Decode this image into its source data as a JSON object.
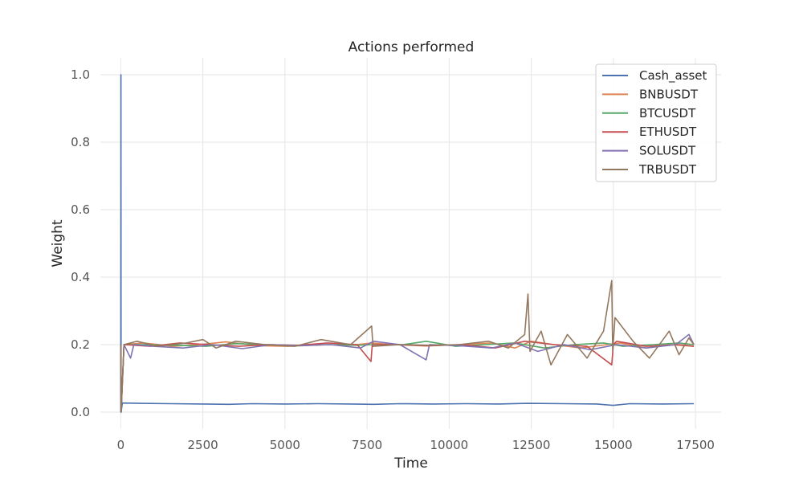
{
  "chart_data": {
    "type": "line",
    "title": "Actions performed",
    "xlabel": "Time",
    "ylabel": "Weight",
    "xlim": [
      -620,
      18280
    ],
    "ylim": [
      -0.05,
      1.05
    ],
    "xticks": [
      0,
      2500,
      5000,
      7500,
      10000,
      12500,
      15000,
      17500
    ],
    "xtick_labels": [
      "0",
      "2500",
      "5000",
      "7500",
      "10000",
      "12500",
      "15000",
      "17500"
    ],
    "yticks": [
      0.0,
      0.2,
      0.4,
      0.6,
      0.8,
      1.0
    ],
    "ytick_labels": [
      "0.0",
      "0.2",
      "0.4",
      "0.6",
      "0.8",
      "1.0"
    ],
    "grid": true,
    "legend_position": "top-right",
    "series": [
      {
        "name": "Cash_asset",
        "color": "#4c72b0",
        "x": [
          0,
          5,
          10,
          50,
          600,
          1500,
          2500,
          3300,
          4000,
          5000,
          6000,
          7000,
          7700,
          8500,
          9500,
          10500,
          11500,
          12400,
          13500,
          14500,
          15000,
          15500,
          16500,
          17450
        ],
        "y": [
          0.0,
          1.0,
          0.0,
          0.027,
          0.026,
          0.025,
          0.024,
          0.023,
          0.025,
          0.024,
          0.025,
          0.024,
          0.023,
          0.025,
          0.024,
          0.025,
          0.024,
          0.026,
          0.025,
          0.024,
          0.02,
          0.025,
          0.024,
          0.025
        ]
      },
      {
        "name": "BNBUSDT",
        "color": "#dd8452",
        "x": [
          0,
          10,
          100,
          700,
          1600,
          2400,
          3200,
          4200,
          5100,
          6100,
          7000,
          7650,
          8300,
          9300,
          10300,
          11300,
          12000,
          12500,
          13200,
          14000,
          14800,
          15200,
          16000,
          16700,
          17450
        ],
        "y": [
          0.2,
          0.0,
          0.2,
          0.205,
          0.195,
          0.2,
          0.208,
          0.197,
          0.195,
          0.2,
          0.198,
          0.205,
          0.2,
          0.196,
          0.2,
          0.205,
          0.19,
          0.21,
          0.2,
          0.19,
          0.2,
          0.205,
          0.19,
          0.2,
          0.195
        ]
      },
      {
        "name": "BTCUSDT",
        "color": "#55a868",
        "x": [
          0,
          10,
          100,
          800,
          1700,
          2600,
          3500,
          4500,
          5400,
          6300,
          7200,
          7700,
          8600,
          9300,
          10200,
          11100,
          12000,
          12900,
          13800,
          14700,
          15300,
          16200,
          17000,
          17450
        ],
        "y": [
          0.2,
          0.0,
          0.2,
          0.2,
          0.198,
          0.195,
          0.203,
          0.2,
          0.197,
          0.2,
          0.198,
          0.2,
          0.2,
          0.21,
          0.195,
          0.2,
          0.205,
          0.19,
          0.2,
          0.205,
          0.195,
          0.2,
          0.205,
          0.2
        ]
      },
      {
        "name": "ETHUSDT",
        "color": "#c44e52",
        "x": [
          0,
          10,
          100,
          900,
          1800,
          2700,
          3600,
          4500,
          5400,
          6300,
          7200,
          7620,
          7660,
          8400,
          9400,
          10400,
          11400,
          12300,
          13200,
          14200,
          14950,
          15000,
          15100,
          16000,
          17000,
          17450
        ],
        "y": [
          0.2,
          0.0,
          0.2,
          0.195,
          0.205,
          0.2,
          0.195,
          0.2,
          0.198,
          0.205,
          0.2,
          0.15,
          0.2,
          0.2,
          0.197,
          0.2,
          0.19,
          0.21,
          0.2,
          0.195,
          0.14,
          0.2,
          0.21,
          0.195,
          0.2,
          0.195
        ]
      },
      {
        "name": "SOLUSDT",
        "color": "#8172b3",
        "x": [
          0,
          10,
          100,
          300,
          400,
          1000,
          1900,
          2800,
          3700,
          4600,
          5500,
          6400,
          7300,
          7700,
          8500,
          9300,
          9400,
          10300,
          11300,
          12000,
          12700,
          13500,
          14300,
          15100,
          16000,
          16900,
          17300,
          17450
        ],
        "y": [
          0.2,
          0.0,
          0.2,
          0.16,
          0.2,
          0.195,
          0.19,
          0.2,
          0.188,
          0.2,
          0.197,
          0.2,
          0.19,
          0.21,
          0.2,
          0.155,
          0.2,
          0.197,
          0.19,
          0.205,
          0.18,
          0.2,
          0.185,
          0.2,
          0.19,
          0.2,
          0.23,
          0.2
        ]
      },
      {
        "name": "TRBUSDT",
        "color": "#937860",
        "x": [
          0,
          10,
          100,
          500,
          1100,
          2000,
          2500,
          2900,
          3500,
          4400,
          5300,
          6100,
          7000,
          7640,
          7680,
          8500,
          9400,
          10300,
          11200,
          11800,
          12300,
          12400,
          12460,
          12800,
          13100,
          13600,
          14200,
          14700,
          14950,
          14980,
          15050,
          15600,
          16100,
          16700,
          17000,
          17300,
          17450
        ],
        "y": [
          0.2,
          0.0,
          0.2,
          0.21,
          0.195,
          0.205,
          0.215,
          0.19,
          0.21,
          0.2,
          0.195,
          0.215,
          0.2,
          0.255,
          0.195,
          0.2,
          0.198,
          0.2,
          0.21,
          0.19,
          0.23,
          0.35,
          0.18,
          0.24,
          0.14,
          0.23,
          0.16,
          0.24,
          0.39,
          0.18,
          0.28,
          0.21,
          0.16,
          0.24,
          0.17,
          0.22,
          0.2
        ]
      }
    ]
  }
}
